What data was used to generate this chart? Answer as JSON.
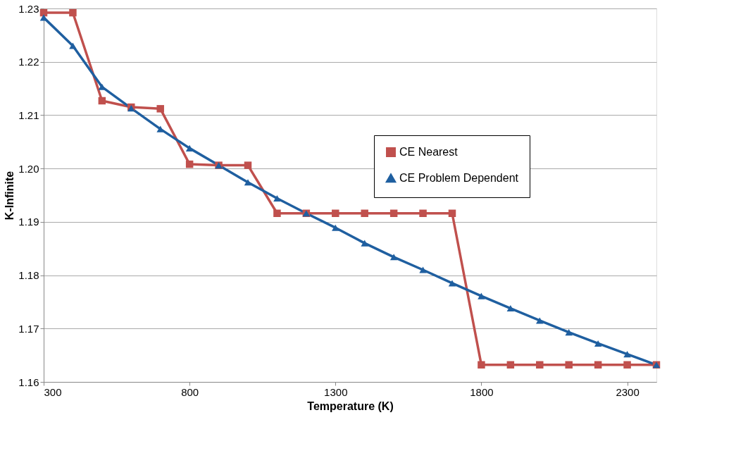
{
  "chart_data": {
    "type": "line",
    "xlabel": "Temperature (K)",
    "ylabel": "K-Infinite",
    "x": [
      300,
      400,
      500,
      600,
      700,
      800,
      900,
      1000,
      1100,
      1200,
      1300,
      1400,
      1500,
      1600,
      1700,
      1800,
      1900,
      2000,
      2100,
      2200,
      2300,
      2400
    ],
    "series": [
      {
        "name": "CE Nearest",
        "color": "#c0504d",
        "marker": "square",
        "values": [
          1.2292,
          1.2292,
          1.2127,
          1.2115,
          1.2112,
          1.2008,
          1.2006,
          1.2006,
          1.1916,
          1.1916,
          1.1916,
          1.1916,
          1.1916,
          1.1916,
          1.1916,
          1.1632,
          1.1632,
          1.1632,
          1.1632,
          1.1632,
          1.1632,
          1.1632
        ]
      },
      {
        "name": "CE Problem Dependent",
        "color": "#1f5fa0",
        "marker": "triangle",
        "values": [
          1.2283,
          1.223,
          1.2153,
          1.2113,
          1.2074,
          1.2038,
          1.2006,
          1.1974,
          1.1944,
          1.1916,
          1.1889,
          1.186,
          1.1834,
          1.181,
          1.1785,
          1.1761,
          1.1738,
          1.1715,
          1.1693,
          1.1672,
          1.1652,
          1.1632
        ]
      }
    ],
    "xlim": [
      300,
      2400
    ],
    "xticks": [
      300,
      800,
      1300,
      1800,
      2300
    ],
    "ylim": [
      1.16,
      1.23
    ],
    "yticks": [
      {
        "value": 1.16,
        "label": "1.16"
      },
      {
        "value": 1.17,
        "label": "1.17"
      },
      {
        "value": 1.18,
        "label": "1.18"
      },
      {
        "value": 1.19,
        "label": "1.19"
      },
      {
        "value": 1.2,
        "label": "1.20"
      },
      {
        "value": 1.21,
        "label": "1.21"
      },
      {
        "value": 1.22,
        "label": "1.22"
      },
      {
        "value": 1.23,
        "label": "1.23"
      }
    ],
    "grid": "y",
    "legend": "top right",
    "line_style": "solid"
  }
}
